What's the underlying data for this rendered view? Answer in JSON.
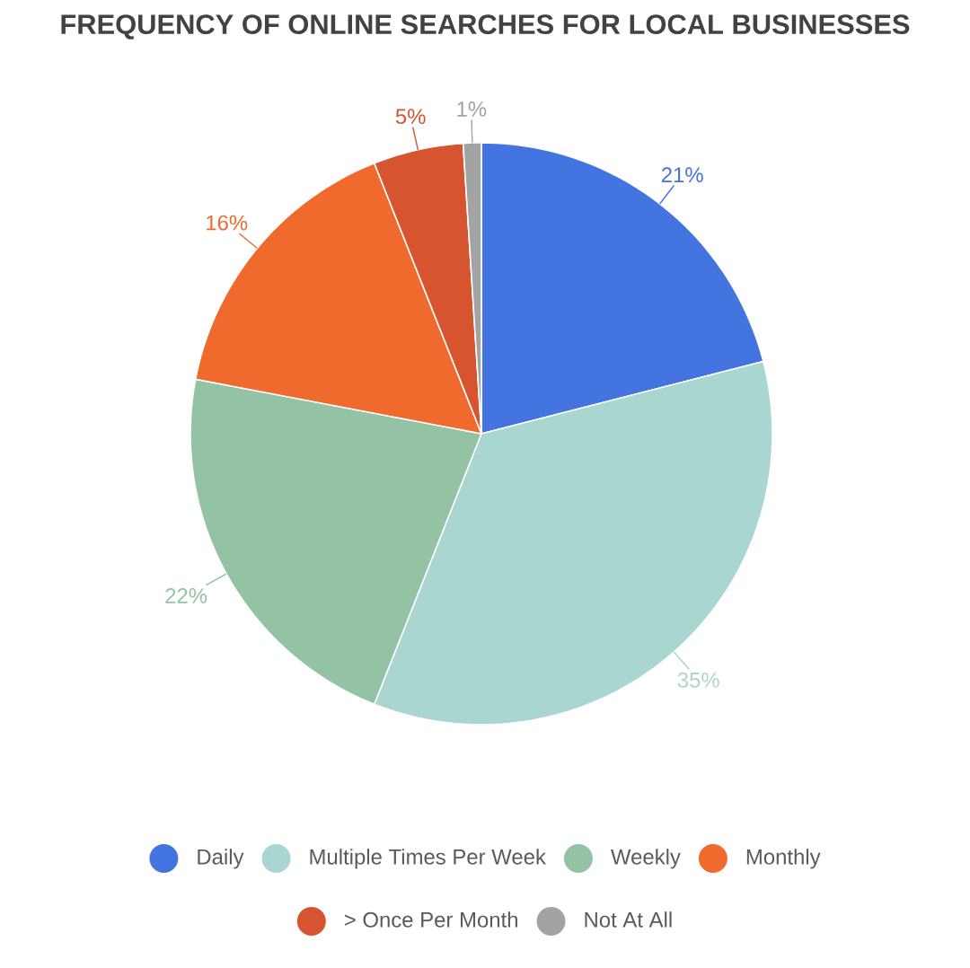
{
  "chart_data": {
    "type": "pie",
    "title": "FREQUENCY OF ONLINE SEARCHES FOR LOCAL BUSINESSES",
    "categories": [
      "Daily",
      "Multiple Times Per Week",
      "Weekly",
      "Monthly",
      "> Once Per Month",
      "Not At All"
    ],
    "values": [
      21,
      35,
      22,
      16,
      5,
      1
    ],
    "value_labels": [
      "21%",
      "35%",
      "22%",
      "16%",
      "5%",
      "1%"
    ],
    "colors": [
      "#4374e0",
      "#a9d6d1",
      "#93c2a5",
      "#f0692d",
      "#d6542f",
      "#a3a3a3"
    ],
    "legend": "bottom"
  }
}
